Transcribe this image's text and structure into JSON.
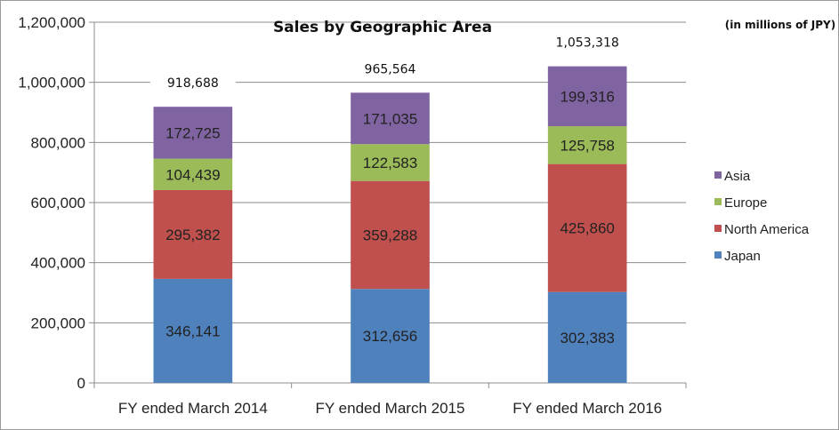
{
  "chart_data": {
    "type": "bar",
    "stacked": true,
    "title": "Sales by Geographic Area",
    "unit_note": "(in  millions of JPY)",
    "categories": [
      "FY ended March 2014",
      "FY ended March 2015",
      "FY ended March 2016"
    ],
    "series": [
      {
        "name": "Japan",
        "color": "#4F81BD",
        "values": [
          346141,
          312656,
          302383
        ],
        "labels": [
          "346,141",
          "312,656",
          "302,383"
        ]
      },
      {
        "name": "North America",
        "color": "#C0504D",
        "values": [
          295382,
          359288,
          425860
        ],
        "labels": [
          "295,382",
          "359,288",
          "425,860"
        ]
      },
      {
        "name": "Europe",
        "color": "#9BBB59",
        "values": [
          104439,
          122583,
          125758
        ],
        "labels": [
          "104,439",
          "122,583",
          "125,758"
        ]
      },
      {
        "name": "Asia",
        "color": "#8064A2",
        "values": [
          172725,
          171035,
          199316
        ],
        "labels": [
          "172,725",
          "171,035",
          "199,316"
        ]
      }
    ],
    "totals": [
      "918,688",
      "965,564",
      "1,053,318"
    ],
    "ylim": [
      0,
      1200000
    ],
    "yticks": [
      0,
      200000,
      400000,
      600000,
      800000,
      1000000,
      1200000
    ],
    "ytick_labels": [
      "0",
      "200,000",
      "400,000",
      "600,000",
      "800,000",
      "1,000,000",
      "1,200,000"
    ],
    "grid": true,
    "legend_position": "right",
    "legend_order": [
      "Asia",
      "Europe",
      "North America",
      "Japan"
    ]
  }
}
